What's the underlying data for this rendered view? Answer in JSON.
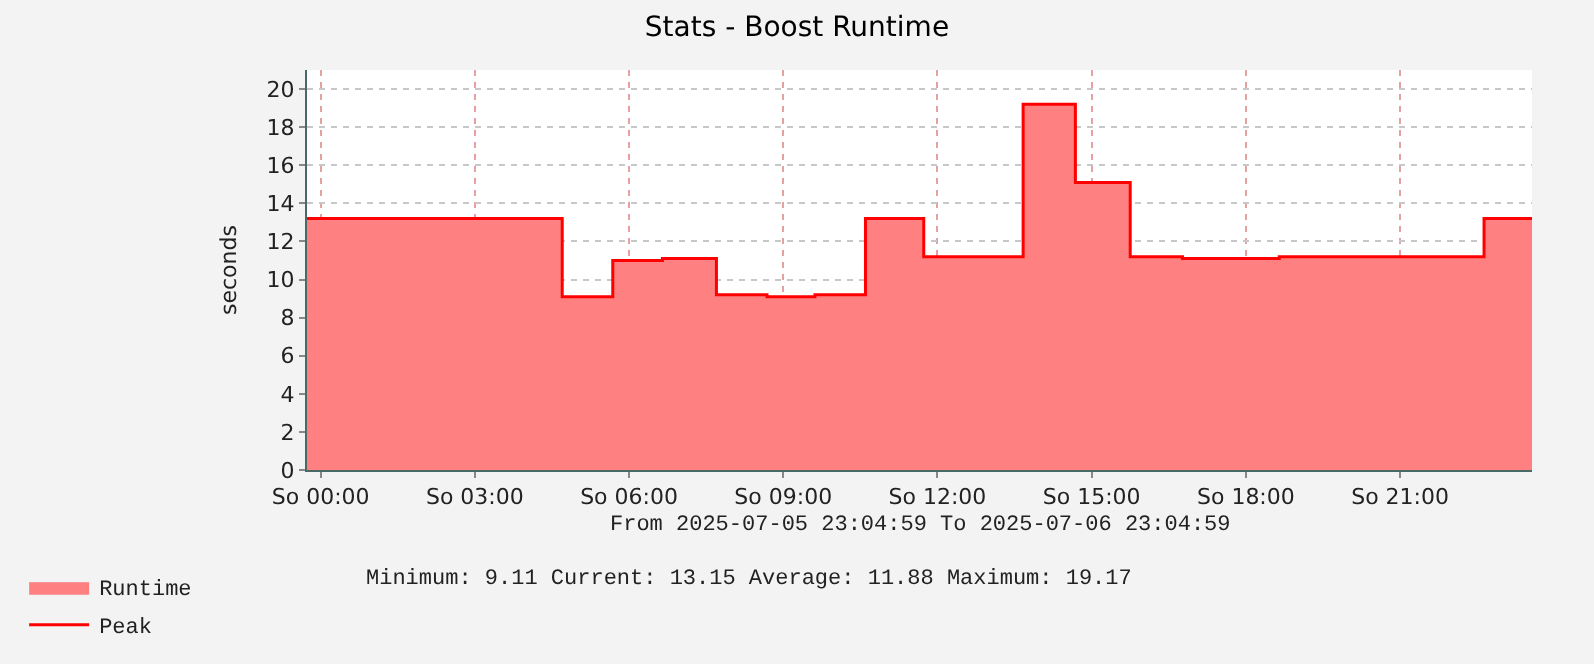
{
  "chart_data": {
    "type": "area",
    "title": "Stats - Boost Runtime",
    "ylabel": "seconds",
    "annotations": [
      "From 2025-07-05 23:04:59 To 2025-07-06 23:04:59",
      "Minimum: 9.11 Current: 13.15 Average: 11.88 Maximum: 19.17"
    ],
    "x": [
      "2025-07-05T23:44",
      "2025-07-06T04:42",
      "2025-07-06T05:41",
      "2025-07-06T06:39",
      "2025-07-06T07:42",
      "2025-07-06T08:41",
      "2025-07-06T09:37",
      "2025-07-06T10:36",
      "2025-07-06T11:44",
      "2025-07-06T13:40",
      "2025-07-06T14:41",
      "2025-07-06T15:45",
      "2025-07-06T16:46",
      "2025-07-06T18:39",
      "2025-07-06T22:38",
      "2025-07-06T23:34"
    ],
    "series": [
      {
        "name": "Runtime",
        "color": "#ff8080",
        "values": [
          13.2,
          9.1,
          11.0,
          11.1,
          9.2,
          9.1,
          9.2,
          13.2,
          11.2,
          19.2,
          15.1,
          11.2,
          11.1,
          11.2,
          13.2,
          13.2
        ]
      },
      {
        "name": "Peak",
        "type": "step",
        "color": "#ff0000",
        "values": [
          13.2,
          9.1,
          11.0,
          11.1,
          9.2,
          9.1,
          9.2,
          13.2,
          11.2,
          19.2,
          15.1,
          11.2,
          11.1,
          11.2,
          13.2,
          13.2
        ]
      }
    ],
    "xlim": [
      "2025-07-05T23:44",
      "2025-07-06T23:34"
    ],
    "xticks": [
      {
        "value": "2025-07-06T00:00",
        "label": "So 00:00"
      },
      {
        "value": "2025-07-06T03:00",
        "label": "So 03:00"
      },
      {
        "value": "2025-07-06T06:00",
        "label": "So 06:00"
      },
      {
        "value": "2025-07-06T09:00",
        "label": "So 09:00"
      },
      {
        "value": "2025-07-06T12:00",
        "label": "So 12:00"
      },
      {
        "value": "2025-07-06T15:00",
        "label": "So 15:00"
      },
      {
        "value": "2025-07-06T18:00",
        "label": "So 18:00"
      },
      {
        "value": "2025-07-06T21:00",
        "label": "So 21:00"
      }
    ],
    "ylim": [
      0,
      21
    ],
    "yticks": [
      0,
      2,
      4,
      6,
      8,
      10,
      12,
      14,
      16,
      18,
      20
    ],
    "grid": true,
    "legend": "bottom left"
  }
}
